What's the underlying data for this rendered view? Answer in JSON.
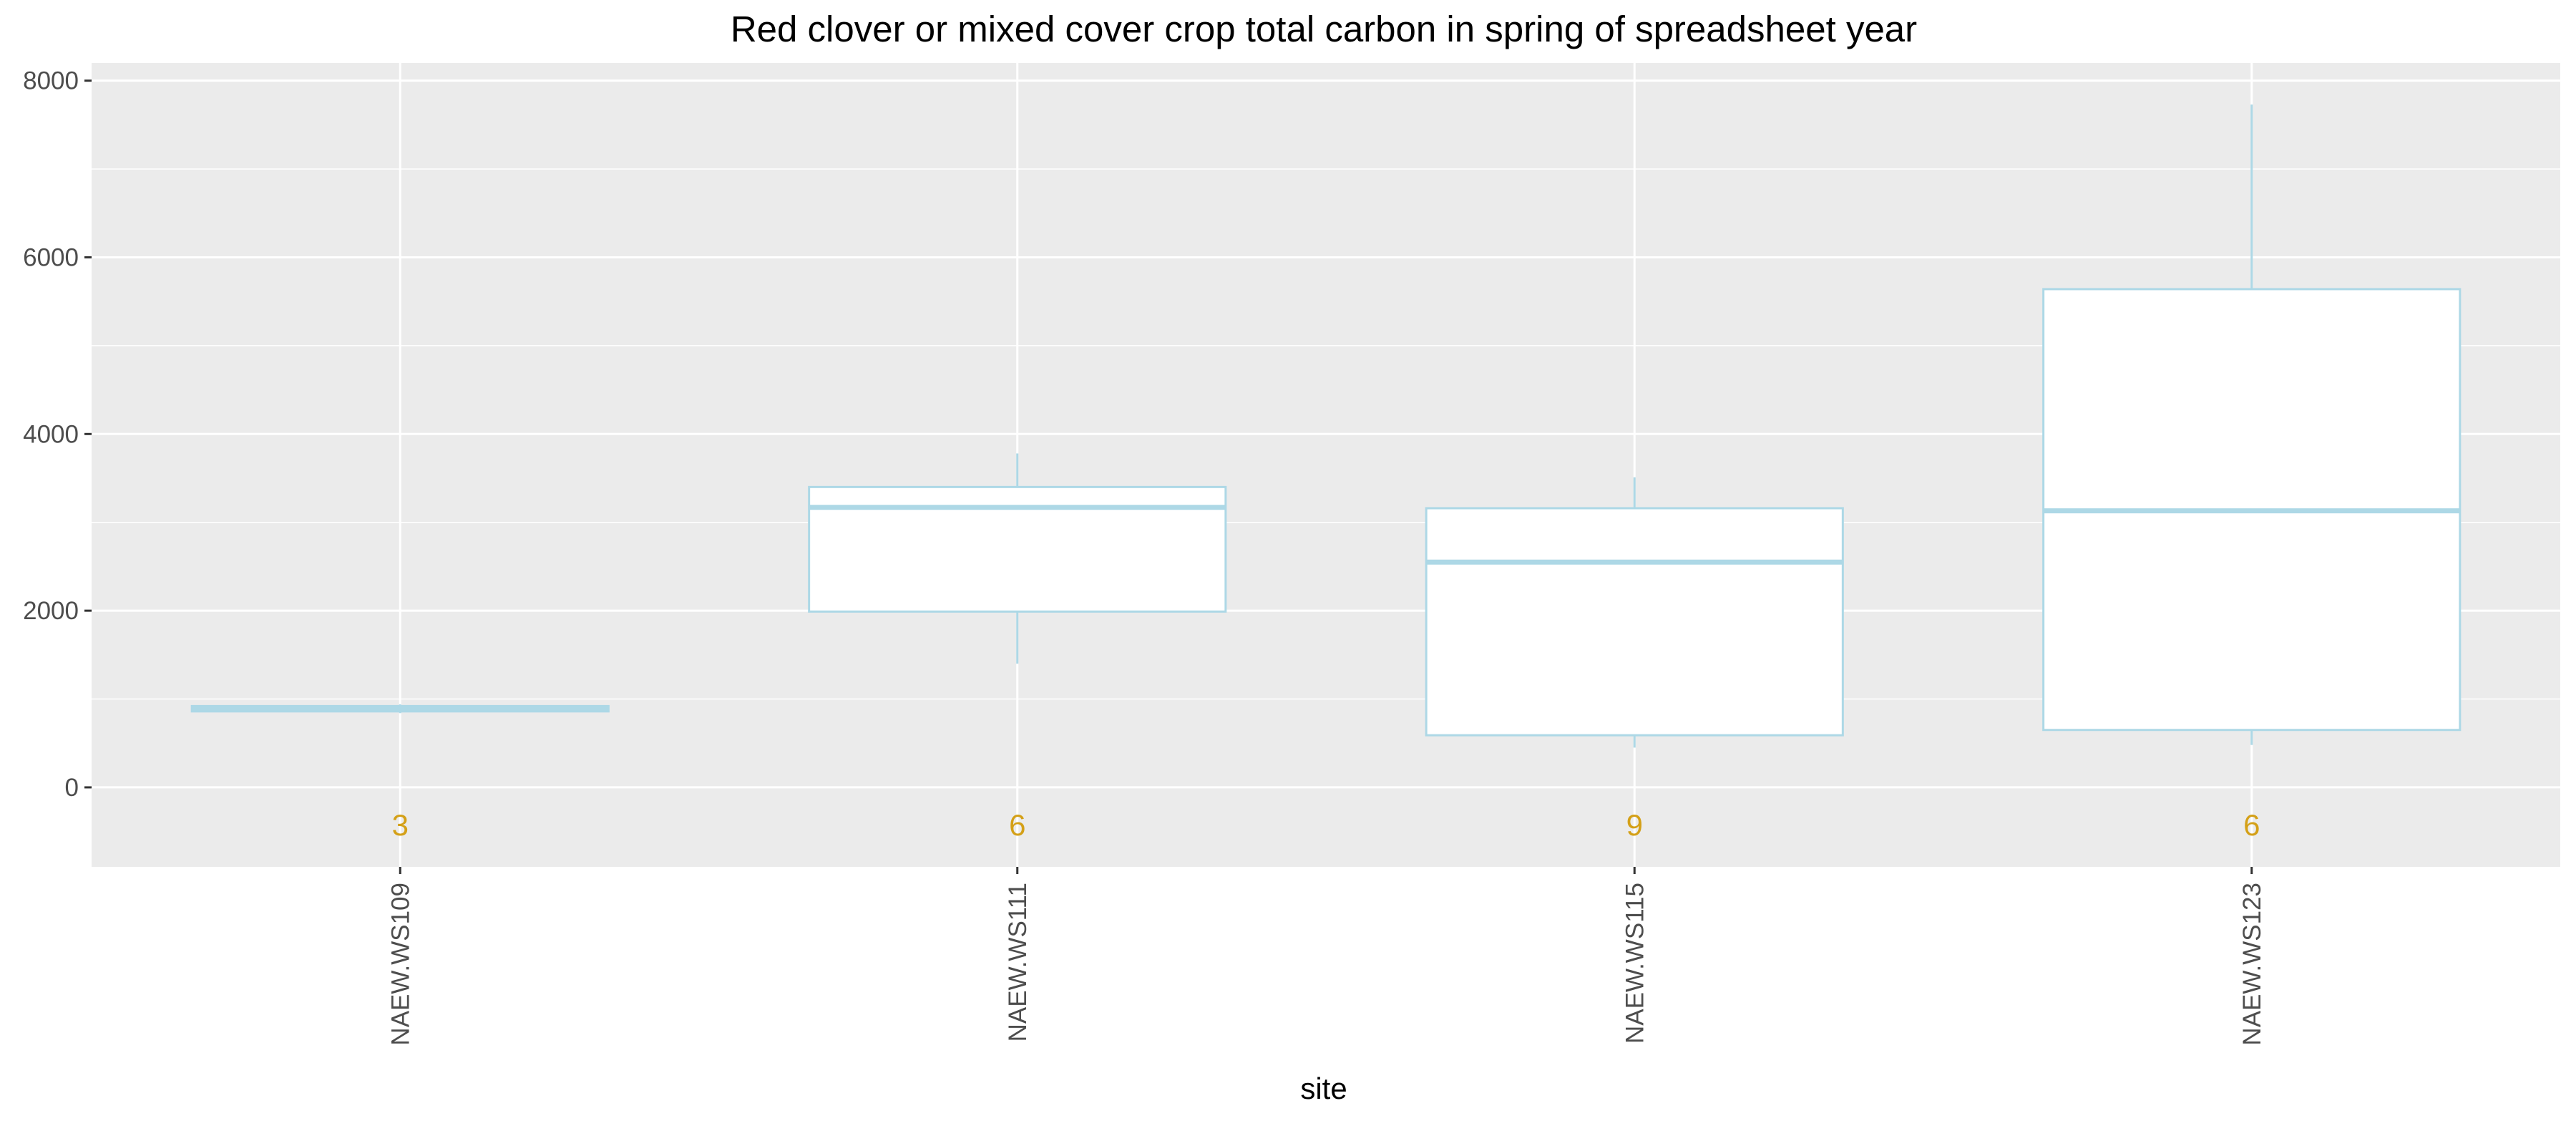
{
  "chart_data": {
    "type": "box",
    "title": "Red clover or mixed cover crop total carbon in spring of spreadsheet year",
    "xlabel": "site",
    "ylabel": "",
    "ylim": [
      -900,
      8200
    ],
    "yticks": [
      0,
      2000,
      4000,
      6000,
      8000
    ],
    "grid": true,
    "colors": {
      "panel": "#ebebeb",
      "grid": "#ffffff",
      "box_stroke": "#add8e6",
      "box_fill": "#ffffff",
      "count_text": "#d4a017"
    },
    "categories": [
      "NAEW.WS109",
      "NAEW.WS111",
      "NAEW.WS115",
      "NAEW.WS123"
    ],
    "boxes": [
      {
        "site": "NAEW.WS109",
        "min": 840,
        "q1": 860,
        "median": 890,
        "q3": 920,
        "max": 940,
        "n": "3"
      },
      {
        "site": "NAEW.WS111",
        "min": 1400,
        "q1": 1990,
        "median": 3170,
        "q3": 3400,
        "max": 3780,
        "n": "6"
      },
      {
        "site": "NAEW.WS115",
        "min": 450,
        "q1": 590,
        "median": 2550,
        "q3": 3160,
        "max": 3510,
        "n": "9"
      },
      {
        "site": "NAEW.WS123",
        "min": 480,
        "q1": 650,
        "median": 3130,
        "q3": 5640,
        "max": 7730,
        "n": "6"
      }
    ],
    "count_label_y": -430
  }
}
